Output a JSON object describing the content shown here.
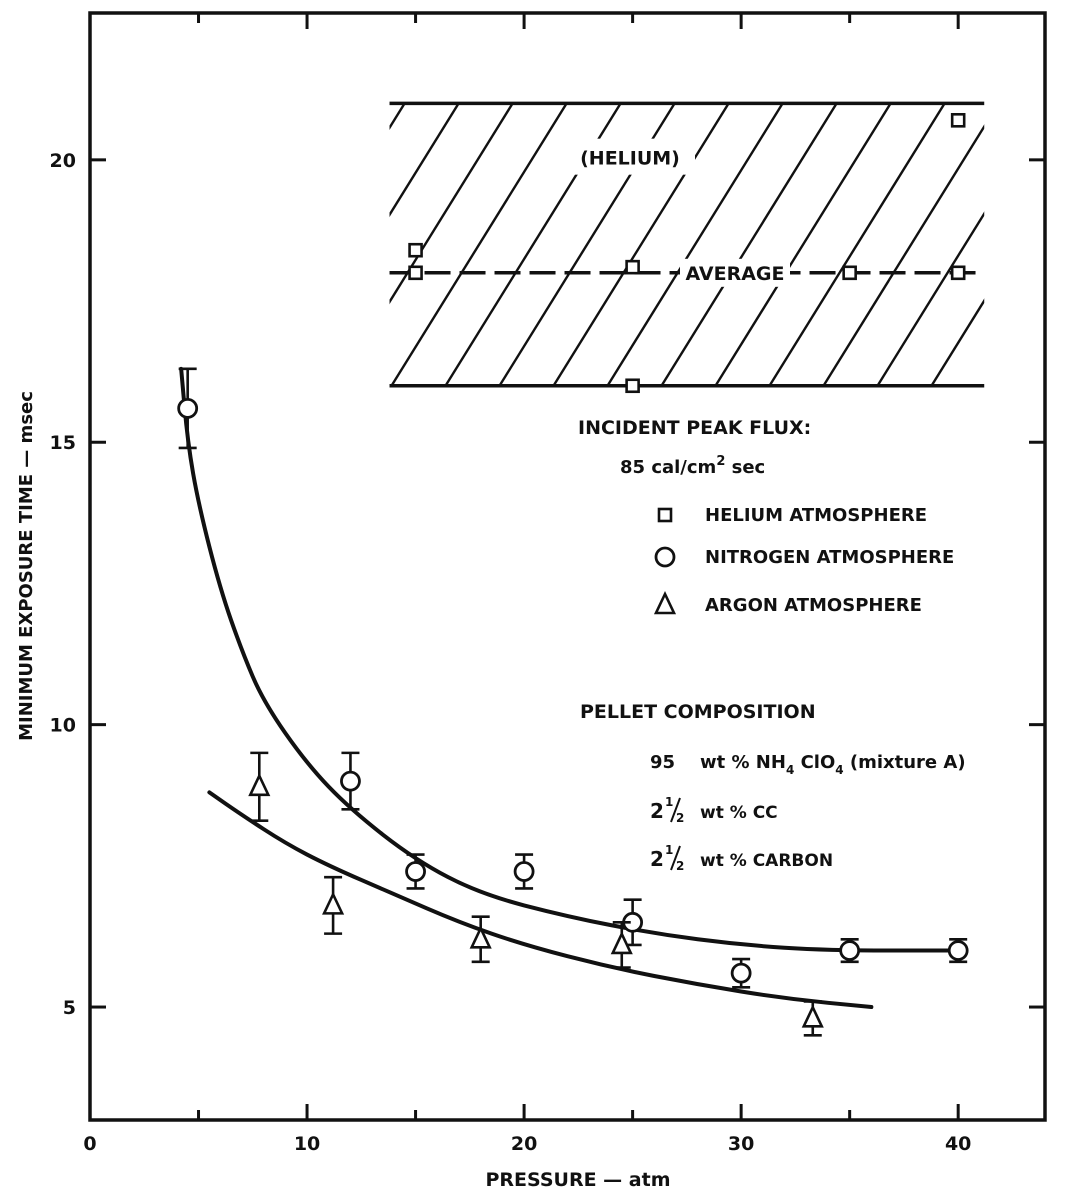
{
  "chart_data": {
    "type": "scatter",
    "xlabel": "PRESSURE — atm",
    "ylabel": "MINIMUM EXPOSURE TIME — msec",
    "xlim": [
      0,
      44
    ],
    "ylim": [
      3,
      22.6
    ],
    "x_ticks": [
      0,
      10,
      20,
      30,
      40
    ],
    "y_ticks": [
      5,
      10,
      15,
      20
    ],
    "grid": false,
    "band": {
      "name": "(HELIUM)",
      "y_top": 21.0,
      "y_bottom": 16.0,
      "x_from": 13.8,
      "x_to": 41.2,
      "average_label": "AVERAGE",
      "average_y": 18.0
    },
    "series": [
      {
        "name": "HELIUM ATMOSPHERE",
        "marker": "square",
        "points": [
          {
            "x": 15,
            "y": 18.4
          },
          {
            "x": 15,
            "y": 18.0
          },
          {
            "x": 25,
            "y": 18.1
          },
          {
            "x": 25,
            "y": 16.0
          },
          {
            "x": 35,
            "y": 18.0
          },
          {
            "x": 40,
            "y": 18.0
          },
          {
            "x": 40,
            "y": 20.7
          }
        ]
      },
      {
        "name": "NITROGEN ATMOSPHERE",
        "marker": "circle",
        "points": [
          {
            "x": 4.5,
            "y": 15.6,
            "err": 0.7
          },
          {
            "x": 12,
            "y": 9.0,
            "err": 0.5
          },
          {
            "x": 15,
            "y": 7.4,
            "err": 0.3
          },
          {
            "x": 20,
            "y": 7.4,
            "err": 0.3
          },
          {
            "x": 25,
            "y": 6.5,
            "err": 0.4
          },
          {
            "x": 30,
            "y": 5.6,
            "err": 0.25
          },
          {
            "x": 35,
            "y": 6.0,
            "err": 0.2
          },
          {
            "x": 40,
            "y": 6.0,
            "err": 0.2
          }
        ],
        "fit": [
          [
            4.2,
            16.3
          ],
          [
            4.5,
            15.0
          ],
          [
            5,
            13.9
          ],
          [
            6,
            12.4
          ],
          [
            7,
            11.3
          ],
          [
            8,
            10.4
          ],
          [
            10,
            9.3
          ],
          [
            12,
            8.5
          ],
          [
            15,
            7.6
          ],
          [
            18,
            7.0
          ],
          [
            22,
            6.6
          ],
          [
            26,
            6.3
          ],
          [
            30,
            6.1
          ],
          [
            34,
            6.0
          ],
          [
            40,
            6.0
          ]
        ]
      },
      {
        "name": "ARGON ATMOSPHERE",
        "marker": "triangle",
        "points": [
          {
            "x": 7.8,
            "y": 8.9,
            "err": 0.6
          },
          {
            "x": 11.2,
            "y": 6.8,
            "err": 0.5
          },
          {
            "x": 18,
            "y": 6.2,
            "err": 0.4
          },
          {
            "x": 24.5,
            "y": 6.1,
            "err": 0.4
          },
          {
            "x": 33.3,
            "y": 4.8,
            "err": 0.3
          }
        ],
        "fit": [
          [
            5.5,
            8.8
          ],
          [
            7,
            8.4
          ],
          [
            9,
            7.9
          ],
          [
            11,
            7.5
          ],
          [
            14,
            7.0
          ],
          [
            17,
            6.5
          ],
          [
            20,
            6.1
          ],
          [
            24,
            5.7
          ],
          [
            28,
            5.4
          ],
          [
            32,
            5.15
          ],
          [
            36,
            5.0
          ]
        ]
      }
    ],
    "annotations": {
      "flux_title": "INCIDENT PEAK FLUX:",
      "flux_value_prefix": "85 cal/cm",
      "flux_value_sup": "2",
      "flux_value_suffix": " sec",
      "composition_title": "PELLET COMPOSITION",
      "comp_1_num": "95",
      "comp_1_pre": "wt % NH",
      "comp_1_sub1": "4",
      "comp_1_mid": " ClO",
      "comp_1_sub2": "4",
      "comp_1_post": " (mixture A)",
      "comp_2_whole": "2",
      "comp_2_num": "1",
      "comp_2_den": "2",
      "comp_2_text": "wt % CC",
      "comp_3_whole": "2",
      "comp_3_num": "1",
      "comp_3_den": "2",
      "comp_3_text": "wt % CARBON"
    }
  }
}
